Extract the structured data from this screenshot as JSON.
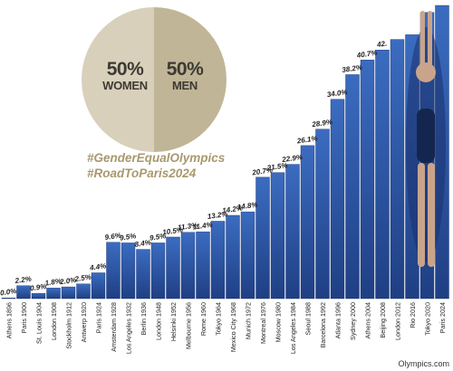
{
  "infographic": {
    "women_pct": "50%",
    "women_label": "WOMEN",
    "men_pct": "50%",
    "men_label": "MEN",
    "hashtag_1": "#GenderEqualOlympics",
    "hashtag_2": "#RoadToParis2024",
    "credit": "Olympics.com",
    "colors": {
      "women_slice": "#d9d0bb",
      "men_slice": "#c0b596",
      "hashtag": "#a9986e",
      "bar_dark": "#1f3f84",
      "bar_light": "#3b6cc0"
    }
  },
  "chart_data": {
    "type": "bar",
    "categories": [
      "Athens 1896",
      "Paris 1900",
      "St. Louis 1904",
      "London 1908",
      "Stockholm 1912",
      "Antwerp 1920",
      "Paris 1924",
      "Amsterdam 1928",
      "Los Angeles 1932",
      "Berlin 1936",
      "London 1948",
      "Helsinki 1952",
      "Melbourne 1956",
      "Rome 1960",
      "Tokyo 1964",
      "Mexico City 1968",
      "Munich 1972",
      "Montreal 1976",
      "Moscow 1980",
      "Los Angeles 1984",
      "Seoul 1988",
      "Barcelona 1992",
      "Atlanta 1996",
      "Sydney 2000",
      "Athens 2004",
      "Beijing 2008",
      "London 2012",
      "Rio 2016",
      "Tokyo 2020",
      "Paris 2024"
    ],
    "values": [
      0.0,
      2.2,
      0.9,
      1.8,
      2.0,
      2.5,
      4.4,
      9.6,
      9.5,
      8.4,
      9.5,
      10.5,
      11.3,
      11.4,
      13.2,
      14.2,
      14.8,
      20.7,
      21.5,
      22.9,
      26.1,
      28.9,
      34.0,
      38.2,
      40.7,
      42.4,
      44.2,
      45.0,
      48.8,
      50.0
    ],
    "labels": [
      "0.0%",
      "2.2%",
      "0.9%",
      "1.8%",
      "2.0%",
      "2.5%",
      "4.4%",
      "9.6%",
      "9.5%",
      "8.4%",
      "9.5%",
      "10.5%",
      "11.3%",
      "11.4%",
      "13.2%",
      "14.2%",
      "14.8%",
      "20.7%",
      "21.5%",
      "22.9%",
      "26.1%",
      "28.9%",
      "34.0%",
      "38.2%",
      "40.7%",
      "42.",
      "",
      "",
      "",
      ""
    ],
    "pie": [
      {
        "name": "WOMEN",
        "value": 50
      },
      {
        "name": "MEN",
        "value": 50
      }
    ],
    "ylim": [
      0,
      50
    ],
    "title": "",
    "xlabel": "",
    "ylabel": ""
  }
}
